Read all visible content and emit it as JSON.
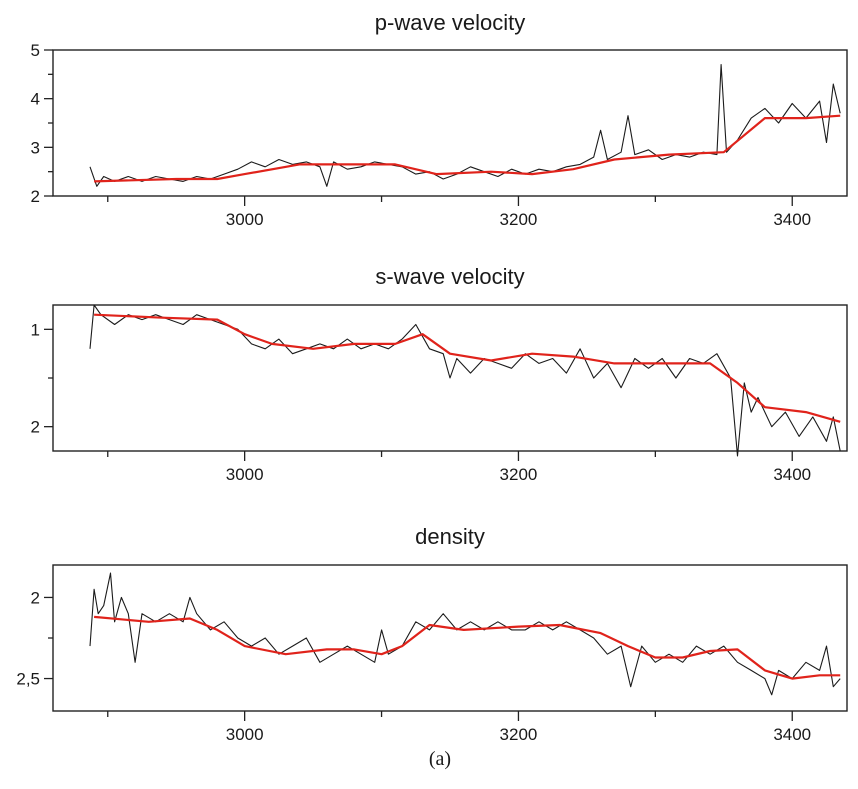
{
  "caption": "(a)",
  "chart_data": [
    {
      "type": "line",
      "title": "p-wave velocity",
      "xlim": [
        2860,
        3440
      ],
      "ylim": [
        2,
        5
      ],
      "y_inverted": false,
      "x_ticks": [
        3000,
        3200,
        3400
      ],
      "x_tick_labels": [
        "3000",
        "3200",
        "3400"
      ],
      "x_minor_ticks": [
        2900,
        3100,
        3300
      ],
      "y_ticks": [
        2,
        3,
        4,
        5
      ],
      "y_tick_labels": [
        "2",
        "3",
        "4",
        "5"
      ],
      "y_minor_ticks": [
        2.5,
        3.5,
        4.5
      ],
      "series": [
        {
          "role": "raw-log",
          "color": "#1b1b1b",
          "x": [
            2887,
            2892,
            2897,
            2905,
            2915,
            2925,
            2935,
            2945,
            2955,
            2965,
            2975,
            2985,
            2995,
            3005,
            3015,
            3025,
            3035,
            3045,
            3055,
            3060,
            3065,
            3075,
            3085,
            3095,
            3105,
            3115,
            3125,
            3135,
            3145,
            3155,
            3165,
            3175,
            3185,
            3195,
            3205,
            3215,
            3225,
            3235,
            3245,
            3255,
            3260,
            3265,
            3275,
            3280,
            3285,
            3295,
            3305,
            3315,
            3325,
            3335,
            3345,
            3348,
            3352,
            3360,
            3370,
            3380,
            3390,
            3400,
            3410,
            3420,
            3425,
            3430,
            3435
          ],
          "y": [
            2.6,
            2.2,
            2.4,
            2.3,
            2.4,
            2.3,
            2.4,
            2.35,
            2.3,
            2.4,
            2.35,
            2.45,
            2.55,
            2.7,
            2.6,
            2.75,
            2.65,
            2.7,
            2.6,
            2.2,
            2.7,
            2.55,
            2.6,
            2.7,
            2.65,
            2.6,
            2.45,
            2.5,
            2.35,
            2.45,
            2.6,
            2.5,
            2.4,
            2.55,
            2.45,
            2.55,
            2.5,
            2.6,
            2.65,
            2.8,
            3.35,
            2.75,
            2.9,
            3.65,
            2.85,
            2.95,
            2.75,
            2.85,
            2.8,
            2.9,
            2.85,
            4.7,
            2.9,
            3.15,
            3.6,
            3.8,
            3.5,
            3.9,
            3.6,
            3.95,
            3.1,
            4.3,
            3.7
          ]
        },
        {
          "role": "smoothed-trend",
          "color": "#e0231b",
          "x": [
            2890,
            2950,
            2980,
            3000,
            3040,
            3060,
            3110,
            3140,
            3180,
            3210,
            3240,
            3270,
            3310,
            3350,
            3380,
            3410,
            3435
          ],
          "y": [
            2.3,
            2.35,
            2.35,
            2.45,
            2.65,
            2.65,
            2.65,
            2.45,
            2.5,
            2.45,
            2.55,
            2.75,
            2.85,
            2.9,
            3.6,
            3.6,
            3.65
          ]
        }
      ]
    },
    {
      "type": "line",
      "title": "s-wave velocity",
      "xlim": [
        2860,
        3440
      ],
      "ylim": [
        0.75,
        2.25
      ],
      "y_inverted": true,
      "x_ticks": [
        3000,
        3200,
        3400
      ],
      "x_tick_labels": [
        "3000",
        "3200",
        "3400"
      ],
      "x_minor_ticks": [
        2900,
        3100,
        3300
      ],
      "y_ticks": [
        1,
        2
      ],
      "y_tick_labels": [
        "1",
        "2"
      ],
      "y_minor_ticks": [
        1.5
      ],
      "series": [
        {
          "role": "raw-log",
          "color": "#1b1b1b",
          "x": [
            2887,
            2890,
            2895,
            2905,
            2915,
            2925,
            2935,
            2945,
            2955,
            2965,
            2975,
            2985,
            2995,
            3005,
            3015,
            3025,
            3035,
            3045,
            3055,
            3065,
            3075,
            3085,
            3095,
            3105,
            3115,
            3125,
            3135,
            3145,
            3150,
            3155,
            3165,
            3175,
            3185,
            3195,
            3205,
            3215,
            3225,
            3235,
            3245,
            3255,
            3265,
            3275,
            3285,
            3295,
            3305,
            3315,
            3325,
            3335,
            3345,
            3355,
            3360,
            3365,
            3370,
            3375,
            3385,
            3395,
            3405,
            3415,
            3425,
            3430,
            3435
          ],
          "y": [
            1.2,
            0.75,
            0.85,
            0.95,
            0.85,
            0.9,
            0.85,
            0.9,
            0.95,
            0.85,
            0.9,
            0.95,
            1.0,
            1.15,
            1.2,
            1.1,
            1.25,
            1.2,
            1.15,
            1.2,
            1.1,
            1.2,
            1.15,
            1.2,
            1.1,
            0.95,
            1.2,
            1.25,
            1.5,
            1.3,
            1.45,
            1.3,
            1.35,
            1.4,
            1.25,
            1.35,
            1.3,
            1.45,
            1.2,
            1.5,
            1.35,
            1.6,
            1.3,
            1.4,
            1.3,
            1.5,
            1.3,
            1.35,
            1.25,
            1.5,
            2.3,
            1.55,
            1.85,
            1.7,
            2.0,
            1.85,
            2.1,
            1.9,
            2.15,
            1.9,
            2.25
          ]
        },
        {
          "role": "smoothed-trend",
          "color": "#e0231b",
          "x": [
            2890,
            2940,
            2980,
            3000,
            3020,
            3050,
            3080,
            3110,
            3130,
            3150,
            3180,
            3210,
            3240,
            3270,
            3300,
            3340,
            3360,
            3380,
            3410,
            3435
          ],
          "y": [
            0.85,
            0.88,
            0.9,
            1.05,
            1.15,
            1.2,
            1.15,
            1.15,
            1.05,
            1.25,
            1.32,
            1.25,
            1.28,
            1.35,
            1.35,
            1.35,
            1.55,
            1.8,
            1.85,
            1.95
          ]
        }
      ]
    },
    {
      "type": "line",
      "title": "density",
      "xlim": [
        2860,
        3440
      ],
      "ylim": [
        1.8,
        2.7
      ],
      "y_inverted": true,
      "x_ticks": [
        3000,
        3200,
        3400
      ],
      "x_tick_labels": [
        "3000",
        "3200",
        "3400"
      ],
      "x_minor_ticks": [
        2900,
        3100,
        3300
      ],
      "y_ticks": [
        2,
        2.5
      ],
      "y_tick_labels": [
        "2",
        "2,5"
      ],
      "y_minor_ticks": [
        2.25
      ],
      "series": [
        {
          "role": "raw-log",
          "color": "#1b1b1b",
          "x": [
            2887,
            2890,
            2893,
            2897,
            2902,
            2905,
            2910,
            2915,
            2920,
            2925,
            2935,
            2945,
            2955,
            2960,
            2965,
            2975,
            2985,
            2995,
            3005,
            3015,
            3025,
            3035,
            3045,
            3055,
            3065,
            3075,
            3085,
            3095,
            3100,
            3105,
            3115,
            3125,
            3135,
            3145,
            3155,
            3165,
            3175,
            3185,
            3195,
            3205,
            3215,
            3225,
            3235,
            3245,
            3255,
            3265,
            3275,
            3282,
            3290,
            3300,
            3310,
            3320,
            3330,
            3340,
            3350,
            3360,
            3370,
            3380,
            3385,
            3390,
            3400,
            3410,
            3420,
            3425,
            3430,
            3435
          ],
          "y": [
            2.3,
            1.95,
            2.1,
            2.05,
            1.85,
            2.15,
            2.0,
            2.1,
            2.4,
            2.1,
            2.15,
            2.1,
            2.15,
            2.0,
            2.1,
            2.2,
            2.15,
            2.25,
            2.3,
            2.25,
            2.35,
            2.3,
            2.25,
            2.4,
            2.35,
            2.3,
            2.35,
            2.4,
            2.2,
            2.35,
            2.3,
            2.15,
            2.2,
            2.1,
            2.2,
            2.15,
            2.2,
            2.15,
            2.2,
            2.2,
            2.15,
            2.2,
            2.15,
            2.2,
            2.25,
            2.35,
            2.3,
            2.55,
            2.3,
            2.4,
            2.35,
            2.4,
            2.3,
            2.35,
            2.3,
            2.4,
            2.45,
            2.5,
            2.6,
            2.45,
            2.5,
            2.4,
            2.45,
            2.3,
            2.55,
            2.5
          ]
        },
        {
          "role": "smoothed-trend",
          "color": "#e0231b",
          "x": [
            2890,
            2930,
            2960,
            2980,
            3000,
            3030,
            3060,
            3080,
            3100,
            3115,
            3135,
            3160,
            3200,
            3230,
            3260,
            3280,
            3300,
            3320,
            3340,
            3360,
            3380,
            3400,
            3420,
            3435
          ],
          "y": [
            2.12,
            2.15,
            2.13,
            2.2,
            2.3,
            2.35,
            2.32,
            2.32,
            2.35,
            2.3,
            2.17,
            2.2,
            2.18,
            2.17,
            2.22,
            2.3,
            2.37,
            2.37,
            2.33,
            2.32,
            2.45,
            2.5,
            2.48,
            2.48
          ]
        }
      ]
    }
  ]
}
